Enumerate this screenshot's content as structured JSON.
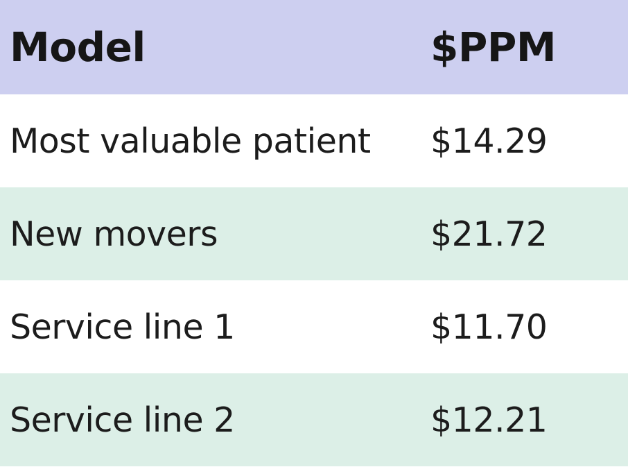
{
  "table": {
    "headers": {
      "model": "Model",
      "ppm": "$PPM"
    },
    "rows": [
      {
        "model": "Most valuable patient",
        "ppm": "$14.29"
      },
      {
        "model": "New movers",
        "ppm": "$21.72"
      },
      {
        "model": "Service line 1",
        "ppm": "$11.70"
      },
      {
        "model": "Service line 2",
        "ppm": "$12.21"
      }
    ]
  },
  "colors": {
    "header_background": "#cdcff0",
    "stripe_background": "#dcefe7",
    "plain_background": "#ffffff",
    "text": "#1c1c1c"
  }
}
